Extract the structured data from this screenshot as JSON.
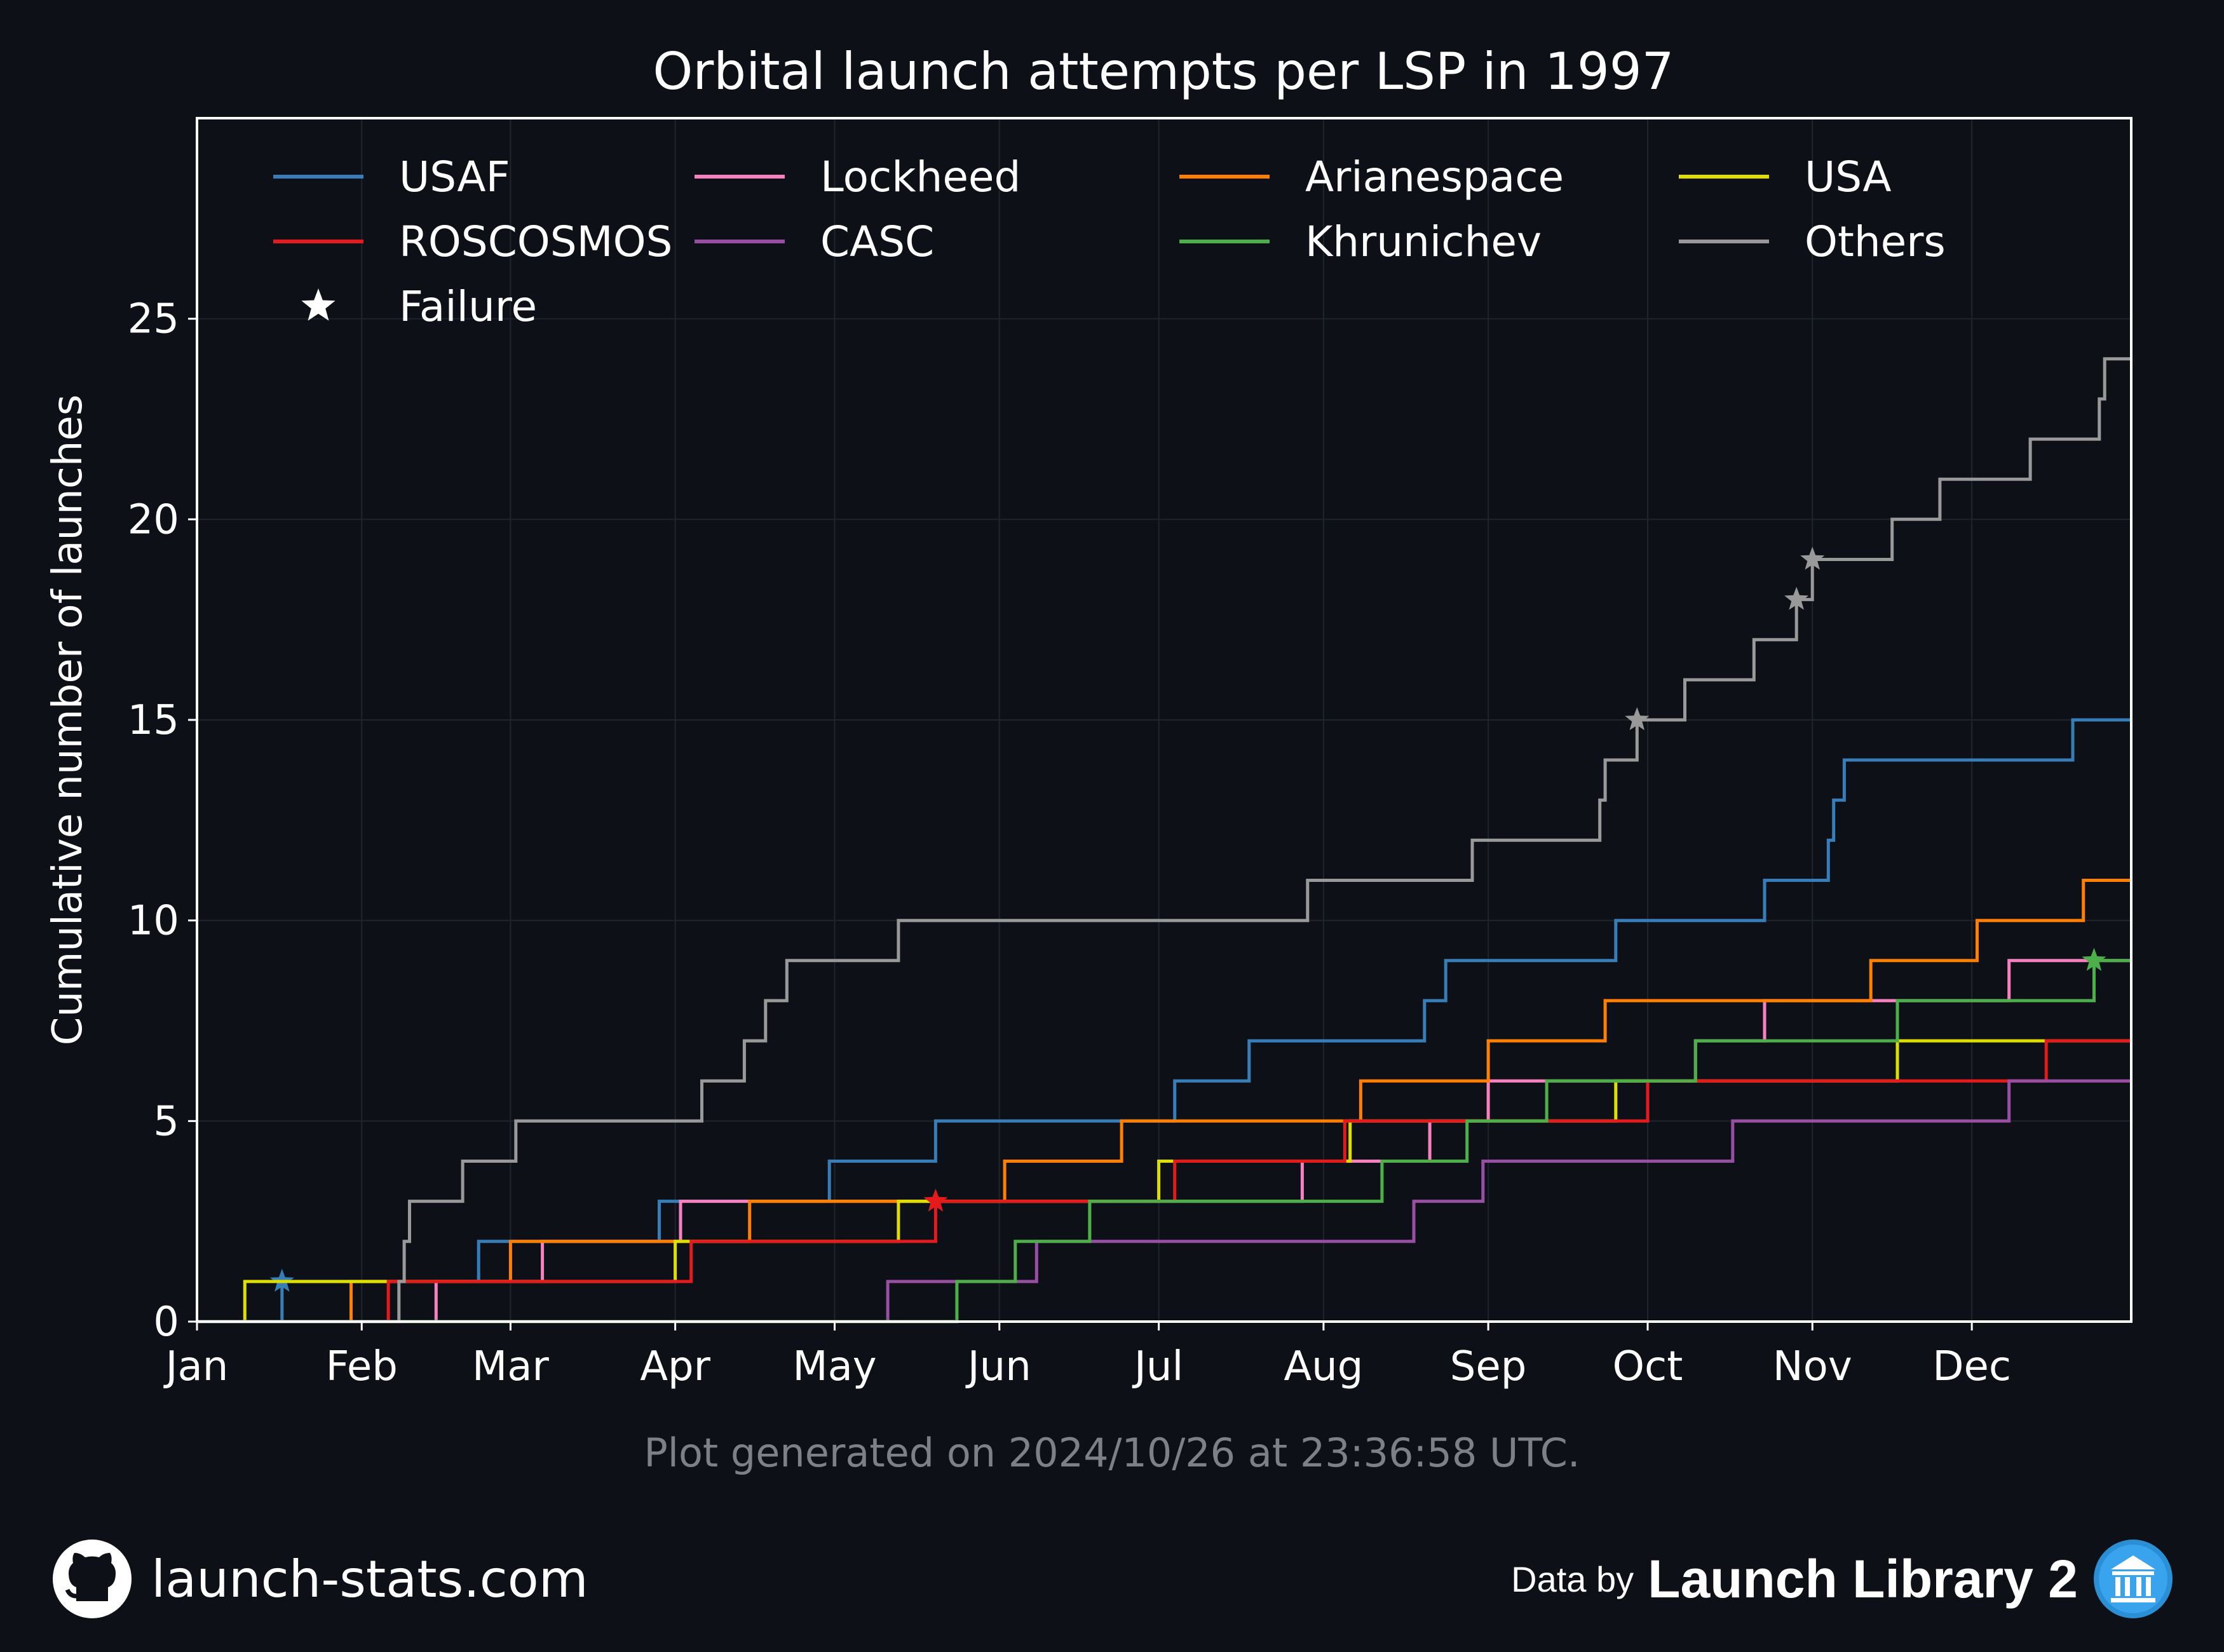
{
  "chart_data": {
    "type": "line",
    "step": true,
    "title": "Orbital launch attempts per LSP in 1997",
    "xlabel": "",
    "ylabel": "Cumulative number of launches",
    "xlim": [
      "1997-01-01",
      "1997-12-31"
    ],
    "ylim": [
      0,
      30
    ],
    "yticks": [
      0,
      5,
      10,
      15,
      20,
      25
    ],
    "xticks": [
      {
        "date": "1997-01-01",
        "label": "Jan"
      },
      {
        "date": "1997-02-01",
        "label": "Feb"
      },
      {
        "date": "1997-03-01",
        "label": "Mar"
      },
      {
        "date": "1997-04-01",
        "label": "Apr"
      },
      {
        "date": "1997-05-01",
        "label": "May"
      },
      {
        "date": "1997-06-01",
        "label": "Jun"
      },
      {
        "date": "1997-07-01",
        "label": "Jul"
      },
      {
        "date": "1997-08-01",
        "label": "Aug"
      },
      {
        "date": "1997-09-01",
        "label": "Sep"
      },
      {
        "date": "1997-10-01",
        "label": "Oct"
      },
      {
        "date": "1997-11-01",
        "label": "Nov"
      },
      {
        "date": "1997-12-01",
        "label": "Dec"
      }
    ],
    "grid": true,
    "legend_position": "top",
    "failure_marker_label": "Failure",
    "series": [
      {
        "name": "USAF",
        "color": "#377eb8",
        "launches": [
          "1997-01-17",
          "1997-02-23",
          "1997-03-29",
          "1997-04-30",
          "1997-05-20",
          "1997-07-04",
          "1997-07-18",
          "1997-08-20",
          "1997-08-24",
          "1997-09-25",
          "1997-10-23",
          "1997-11-04",
          "1997-11-05",
          "1997-11-07",
          "1997-12-20"
        ],
        "failures": [
          "1997-01-17"
        ]
      },
      {
        "name": "Lockheed",
        "color": "#f781bf",
        "launches": [
          "1997-02-15",
          "1997-03-07",
          "1997-04-02",
          "1997-07-28",
          "1997-08-21",
          "1997-09-01",
          "1997-10-10",
          "1997-10-23",
          "1997-12-08"
        ],
        "failures": []
      },
      {
        "name": "Arianespace",
        "color": "#ff7f00",
        "launches": [
          "1997-01-30",
          "1997-03-0",
          "1997-04-15",
          "1997-06-02",
          "1997-06-24",
          "1997-08-08",
          "1997-09-01",
          "1997-09-23",
          "1997-11-12",
          "1997-12-02",
          "1997-12-22"
        ],
        "failures": []
      },
      {
        "name": "USA",
        "color": "#dede00",
        "launches": [
          "1997-01-10",
          "1997-04-01",
          "1997-05-13",
          "1997-07-01",
          "1997-08-06",
          "1997-09-25",
          "1997-11-17"
        ],
        "failures": []
      },
      {
        "name": "ROSCOSMOS",
        "color": "#e41a1c",
        "launches": [
          "1997-02-06",
          "1997-04-04",
          "1997-05-20",
          "1997-07-04",
          "1997-08-05",
          "1997-10-01",
          "1997-12-15"
        ],
        "failures": [
          "1997-05-20"
        ]
      },
      {
        "name": "CASC",
        "color": "#984ea3",
        "launches": [
          "1997-05-11",
          "1997-06-08",
          "1997-08-18",
          "1997-08-31",
          "1997-10-17",
          "1997-12-08"
        ],
        "failures": []
      },
      {
        "name": "Khrunichev",
        "color": "#4daf4a",
        "launches": [
          "1997-05-24",
          "1997-06-04",
          "1997-06-18",
          "1997-08-12",
          "1997-08-28",
          "1997-09-12",
          "1997-10-10",
          "1997-11-17",
          "1997-12-24"
        ],
        "failures": [
          "1997-12-24"
        ]
      },
      {
        "name": "Others",
        "color": "#999999",
        "launches": [
          "1997-02-08",
          "1997-02-09",
          "1997-02-10",
          "1997-02-20",
          "1997-03-02",
          "1997-04-06",
          "1997-04-14",
          "1997-04-18",
          "1997-04-22",
          "1997-05-13",
          "1997-07-29",
          "1997-08-29",
          "1997-09-22",
          "1997-09-23",
          "1997-09-29",
          "1997-10-08",
          "1997-10-21",
          "1997-10-29",
          "1997-11-01",
          "1997-11-16",
          "1997-11-25",
          "1997-12-12",
          "1997-12-25",
          "1997-12-26"
        ],
        "failures": [
          "1997-09-29",
          "1997-10-29",
          "1997-11-01"
        ]
      }
    ]
  },
  "footnote": "Plot generated on 2024/10/26 at 23:36:58 UTC.",
  "branding": {
    "site": "launch-stats.com",
    "site_icon": "github-icon",
    "attribution_prefix": "Data by",
    "attribution_name": "Launch Library 2",
    "attribution_icon": "museum-icon"
  },
  "colors": {
    "background": "#0d1117",
    "axis": "#ffffff",
    "grid": "#1f252d",
    "footnote": "#7d8187"
  }
}
